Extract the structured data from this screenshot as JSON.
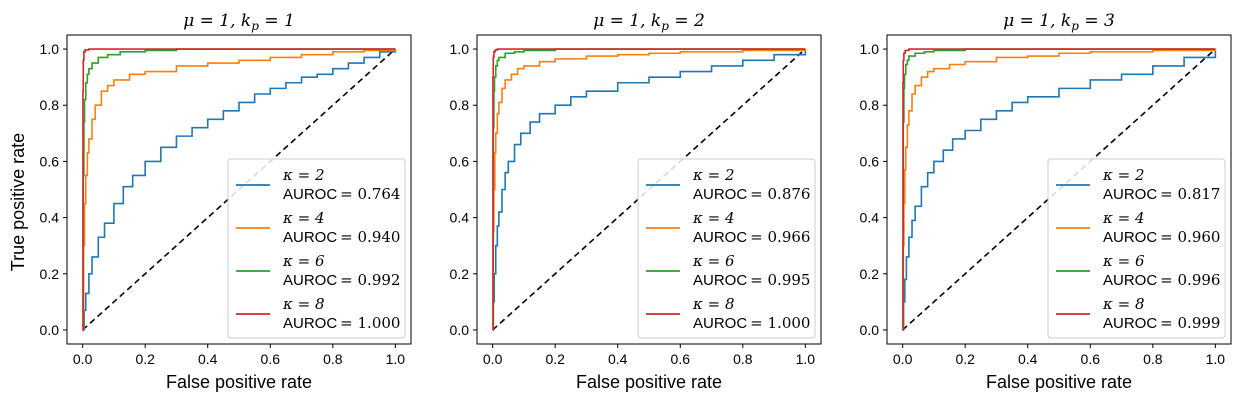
{
  "figure": {
    "ylabel": "True positive rate",
    "xlabel": "False positive rate"
  },
  "chart_data": [
    {
      "type": "line",
      "title": "μ = 1, k_p = 1",
      "title_parts": {
        "mu": "μ = 1,",
        "k": "k",
        "sub": "p",
        "eq": " = 1"
      },
      "xlabel": "False positive rate",
      "ylabel": "True positive rate",
      "xlim": [
        -0.05,
        1.05
      ],
      "ylim": [
        -0.05,
        1.05
      ],
      "xticks": [
        "0.0",
        "0.2",
        "0.4",
        "0.6",
        "0.8",
        "1.0"
      ],
      "yticks": [
        "0.0",
        "0.2",
        "0.4",
        "0.6",
        "0.8",
        "1.0"
      ],
      "grid": false,
      "legend_position": "lower-right",
      "diagonal": {
        "style": "dashed",
        "color": "#000000",
        "x": [
          0,
          1
        ],
        "y": [
          0,
          1
        ]
      },
      "series": [
        {
          "name": "κ = 2",
          "auroc_label": "AUROC",
          "auroc_value": "= 0.764",
          "color": "#1f77b4",
          "x": [
            0,
            0.005,
            0.01,
            0.02,
            0.03,
            0.05,
            0.07,
            0.1,
            0.13,
            0.16,
            0.2,
            0.25,
            0.3,
            0.35,
            0.4,
            0.45,
            0.5,
            0.55,
            0.6,
            0.65,
            0.7,
            0.75,
            0.8,
            0.85,
            0.9,
            0.95,
            1.0
          ],
          "y": [
            0,
            0.07,
            0.13,
            0.2,
            0.26,
            0.33,
            0.38,
            0.45,
            0.51,
            0.55,
            0.6,
            0.65,
            0.69,
            0.72,
            0.75,
            0.78,
            0.81,
            0.84,
            0.86,
            0.88,
            0.9,
            0.91,
            0.93,
            0.95,
            0.97,
            0.99,
            1.0
          ]
        },
        {
          "name": "κ = 4",
          "auroc_label": "AUROC",
          "auroc_value": "= 0.940",
          "color": "#ff7f0e",
          "x": [
            0,
            0.003,
            0.006,
            0.01,
            0.015,
            0.02,
            0.03,
            0.04,
            0.06,
            0.08,
            0.1,
            0.15,
            0.2,
            0.3,
            0.4,
            0.5,
            0.6,
            0.7,
            0.8,
            0.9,
            1.0
          ],
          "y": [
            0,
            0.3,
            0.45,
            0.55,
            0.63,
            0.68,
            0.75,
            0.8,
            0.85,
            0.87,
            0.89,
            0.91,
            0.92,
            0.94,
            0.95,
            0.96,
            0.97,
            0.98,
            0.99,
            0.995,
            1.0
          ]
        },
        {
          "name": "κ = 6",
          "auroc_label": "AUROC",
          "auroc_value": "= 0.992",
          "color": "#2ca02c",
          "x": [
            0,
            0.002,
            0.004,
            0.006,
            0.01,
            0.015,
            0.02,
            0.03,
            0.05,
            0.08,
            0.12,
            0.2,
            0.3,
            1.0
          ],
          "y": [
            0,
            0.55,
            0.74,
            0.82,
            0.88,
            0.91,
            0.93,
            0.95,
            0.97,
            0.98,
            0.99,
            0.995,
            1.0,
            1.0
          ]
        },
        {
          "name": "κ = 8",
          "auroc_label": "AUROC",
          "auroc_value": "= 1.000",
          "color": "#d62728",
          "x": [
            0,
            0.001,
            0.002,
            0.004,
            0.008,
            0.02,
            1.0
          ],
          "y": [
            0,
            0.85,
            0.96,
            0.99,
            0.997,
            1.0,
            1.0
          ]
        }
      ]
    },
    {
      "type": "line",
      "title": "μ = 1, k_p = 2",
      "title_parts": {
        "mu": "μ = 1,",
        "k": "k",
        "sub": "p",
        "eq": " = 2"
      },
      "xlabel": "False positive rate",
      "ylabel": "",
      "xlim": [
        -0.05,
        1.05
      ],
      "ylim": [
        -0.05,
        1.05
      ],
      "xticks": [
        "0.0",
        "0.2",
        "0.4",
        "0.6",
        "0.8",
        "1.0"
      ],
      "yticks": [
        "0.0",
        "0.2",
        "0.4",
        "0.6",
        "0.8",
        "1.0"
      ],
      "grid": false,
      "legend_position": "lower-right",
      "diagonal": {
        "style": "dashed",
        "color": "#000000",
        "x": [
          0,
          1
        ],
        "y": [
          0,
          1
        ]
      },
      "series": [
        {
          "name": "κ = 2",
          "auroc_label": "AUROC",
          "auroc_value": "= 0.876",
          "color": "#1f77b4",
          "x": [
            0,
            0.002,
            0.005,
            0.01,
            0.015,
            0.02,
            0.03,
            0.04,
            0.05,
            0.07,
            0.09,
            0.12,
            0.15,
            0.2,
            0.25,
            0.3,
            0.4,
            0.5,
            0.6,
            0.7,
            0.8,
            0.9,
            1.0
          ],
          "y": [
            0,
            0.1,
            0.2,
            0.3,
            0.37,
            0.42,
            0.5,
            0.56,
            0.6,
            0.66,
            0.7,
            0.74,
            0.77,
            0.8,
            0.83,
            0.85,
            0.88,
            0.9,
            0.92,
            0.94,
            0.96,
            0.98,
            1.0
          ]
        },
        {
          "name": "κ = 4",
          "auroc_label": "AUROC",
          "auroc_value": "= 0.966",
          "color": "#ff7f0e",
          "x": [
            0,
            0.002,
            0.004,
            0.007,
            0.01,
            0.015,
            0.02,
            0.03,
            0.04,
            0.06,
            0.08,
            0.1,
            0.15,
            0.2,
            0.3,
            0.4,
            0.5,
            0.6,
            0.8,
            1.0
          ],
          "y": [
            0,
            0.35,
            0.5,
            0.63,
            0.7,
            0.77,
            0.81,
            0.86,
            0.89,
            0.91,
            0.93,
            0.94,
            0.955,
            0.965,
            0.975,
            0.98,
            0.985,
            0.99,
            0.995,
            1.0
          ]
        },
        {
          "name": "κ = 6",
          "auroc_label": "AUROC",
          "auroc_value": "= 0.995",
          "color": "#2ca02c",
          "x": [
            0,
            0.002,
            0.004,
            0.006,
            0.01,
            0.015,
            0.02,
            0.04,
            0.07,
            0.1,
            0.2,
            1.0
          ],
          "y": [
            0,
            0.72,
            0.85,
            0.9,
            0.94,
            0.96,
            0.97,
            0.985,
            0.99,
            0.995,
            1.0,
            1.0
          ]
        },
        {
          "name": "κ = 8",
          "auroc_label": "AUROC",
          "auroc_value": "= 1.000",
          "color": "#d62728",
          "x": [
            0,
            0.001,
            0.002,
            0.004,
            0.008,
            0.015,
            1.0
          ],
          "y": [
            0,
            0.9,
            0.97,
            0.99,
            0.997,
            1.0,
            1.0
          ]
        }
      ]
    },
    {
      "type": "line",
      "title": "μ = 1, k_p = 3",
      "title_parts": {
        "mu": "μ = 1,",
        "k": "k",
        "sub": "p",
        "eq": " = 3"
      },
      "xlabel": "False positive rate",
      "ylabel": "",
      "xlim": [
        -0.05,
        1.05
      ],
      "ylim": [
        -0.05,
        1.05
      ],
      "xticks": [
        "0.0",
        "0.2",
        "0.4",
        "0.6",
        "0.8",
        "1.0"
      ],
      "yticks": [
        "0.0",
        "0.2",
        "0.4",
        "0.6",
        "0.8",
        "1.0"
      ],
      "grid": false,
      "legend_position": "lower-right",
      "diagonal": {
        "style": "dashed",
        "color": "#000000",
        "x": [
          0,
          1
        ],
        "y": [
          0,
          1
        ]
      },
      "series": [
        {
          "name": "κ = 2",
          "auroc_label": "AUROC",
          "auroc_value": "= 0.817",
          "color": "#1f77b4",
          "x": [
            0,
            0.003,
            0.007,
            0.012,
            0.02,
            0.03,
            0.04,
            0.06,
            0.08,
            0.1,
            0.13,
            0.16,
            0.2,
            0.25,
            0.3,
            0.35,
            0.4,
            0.5,
            0.6,
            0.7,
            0.8,
            0.9,
            1.0
          ],
          "y": [
            0,
            0.1,
            0.18,
            0.26,
            0.33,
            0.39,
            0.44,
            0.51,
            0.56,
            0.6,
            0.64,
            0.68,
            0.71,
            0.75,
            0.78,
            0.81,
            0.83,
            0.86,
            0.89,
            0.91,
            0.94,
            0.97,
            1.0
          ]
        },
        {
          "name": "κ = 4",
          "auroc_label": "AUROC",
          "auroc_value": "= 0.960",
          "color": "#ff7f0e",
          "x": [
            0,
            0.002,
            0.004,
            0.007,
            0.01,
            0.015,
            0.02,
            0.03,
            0.04,
            0.06,
            0.08,
            0.1,
            0.15,
            0.2,
            0.3,
            0.4,
            0.5,
            0.6,
            0.8,
            1.0
          ],
          "y": [
            0,
            0.3,
            0.45,
            0.57,
            0.65,
            0.73,
            0.78,
            0.84,
            0.87,
            0.9,
            0.92,
            0.93,
            0.945,
            0.955,
            0.97,
            0.975,
            0.985,
            0.99,
            0.995,
            1.0
          ]
        },
        {
          "name": "κ = 6",
          "auroc_label": "AUROC",
          "auroc_value": "= 0.996",
          "color": "#2ca02c",
          "x": [
            0,
            0.002,
            0.004,
            0.006,
            0.01,
            0.015,
            0.02,
            0.04,
            0.07,
            0.1,
            0.2,
            1.0
          ],
          "y": [
            0,
            0.74,
            0.86,
            0.91,
            0.945,
            0.96,
            0.975,
            0.985,
            0.99,
            0.995,
            1.0,
            1.0
          ]
        },
        {
          "name": "κ = 8",
          "auroc_label": "AUROC",
          "auroc_value": "= 0.999",
          "color": "#d62728",
          "x": [
            0,
            0.001,
            0.002,
            0.004,
            0.008,
            0.02,
            1.0
          ],
          "y": [
            0,
            0.88,
            0.96,
            0.985,
            0.995,
            1.0,
            1.0
          ]
        }
      ]
    }
  ]
}
